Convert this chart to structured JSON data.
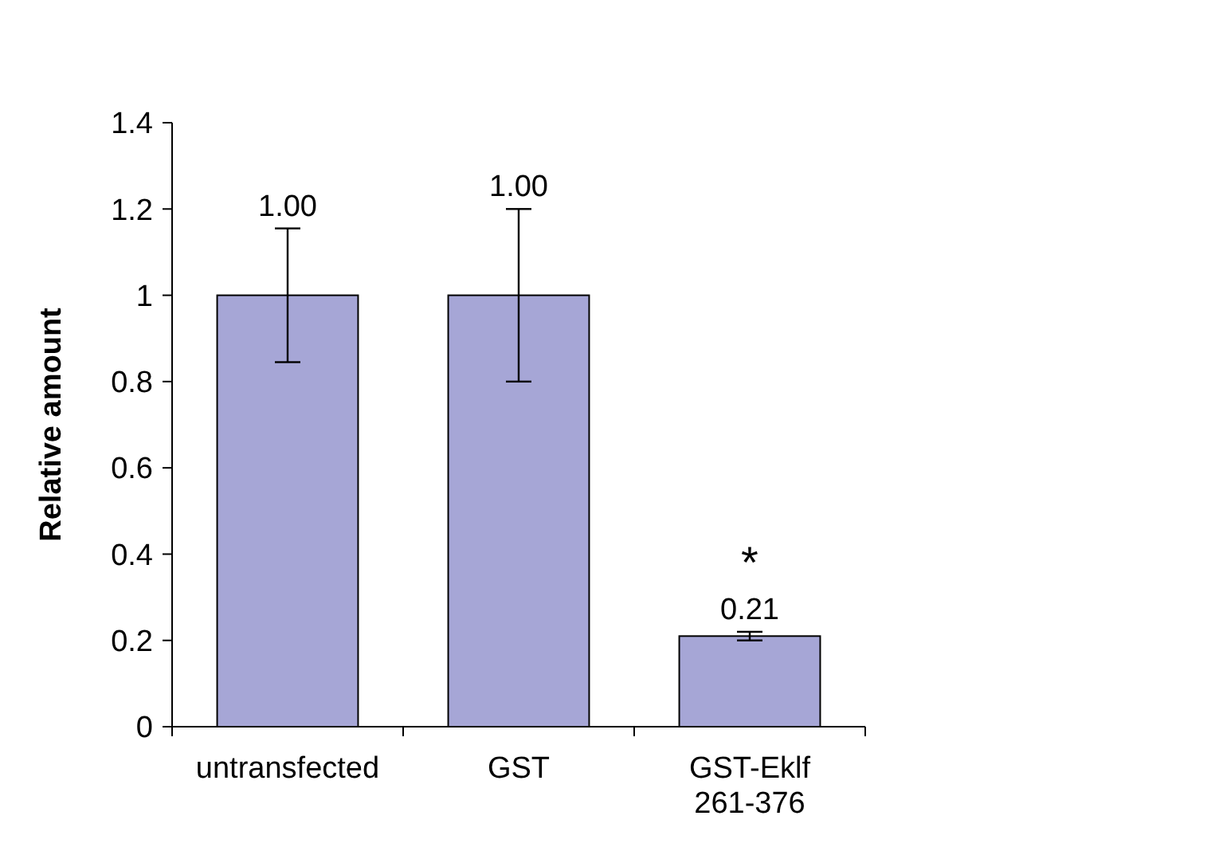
{
  "chart_data": {
    "type": "bar",
    "ylabel": "Relative amount",
    "categories": [
      "untransfected",
      "GST",
      "GST-Eklf 261-376"
    ],
    "values": [
      1,
      1,
      0.21
    ],
    "errors": [
      0.155,
      0.2,
      0.01
    ],
    "value_labels": [
      "1.00",
      "1.00",
      "0.21"
    ],
    "color": "#a6a6d6",
    "ylim": [
      0,
      1.4
    ],
    "yticks": [
      0,
      0.2,
      0.4,
      0.6,
      0.8,
      1,
      1.2,
      1.4
    ],
    "annotations": [
      {
        "text": "*",
        "x": "GST-Eklf 261-376",
        "y": 0.21
      }
    ]
  }
}
